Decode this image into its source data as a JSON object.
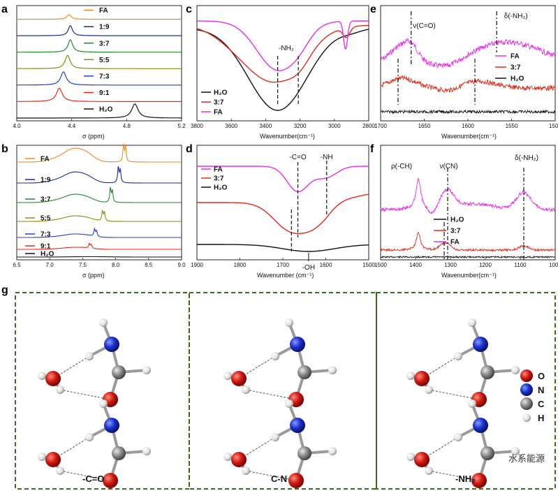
{
  "chart_data": [
    {
      "panel": "a",
      "type": "line",
      "xlabel": "σ (ppm)",
      "xlim": [
        4.0,
        5.2
      ],
      "xticks": [
        "4.0",
        "4.4",
        "4.8",
        "5.2"
      ],
      "series": [
        {
          "name": "FA",
          "color": "#ee8a1e",
          "peak": 4.38,
          "amp": 0.3,
          "width": 0.018
        },
        {
          "name": "1:9",
          "color": "#1b2b8f",
          "peak": 4.39,
          "amp": 0.65,
          "width": 0.018
        },
        {
          "name": "3:7",
          "color": "#22862a",
          "peak": 4.39,
          "amp": 0.8,
          "width": 0.02
        },
        {
          "name": "5:5",
          "color": "#8a8a12",
          "peak": 4.37,
          "amp": 0.85,
          "width": 0.022
        },
        {
          "name": "7:3",
          "color": "#1f3fd6",
          "peak": 4.34,
          "amp": 0.85,
          "width": 0.024
        },
        {
          "name": "9:1",
          "color": "#e02a1a",
          "peak": 4.31,
          "amp": 0.85,
          "width": 0.026
        },
        {
          "name": "H₂O",
          "color": "#111111",
          "peak": 4.86,
          "amp": 0.9,
          "width": 0.028
        }
      ]
    },
    {
      "panel": "b",
      "type": "line",
      "xlabel": "σ (ppm)",
      "xlim": [
        6.5,
        9.0
      ],
      "xticks": [
        "6.5",
        "7.0",
        "7.5",
        "8.0",
        "8.5",
        "9.0"
      ],
      "series": [
        {
          "name": "FA",
          "color": "#ee8a1e"
        },
        {
          "name": "1:9",
          "color": "#1b2b8f"
        },
        {
          "name": "3:7",
          "color": "#22862a"
        },
        {
          "name": "5:5",
          "color": "#8a8a12"
        },
        {
          "name": "7:3",
          "color": "#1f3fd6"
        },
        {
          "name": "9:1",
          "color": "#e02a1a"
        },
        {
          "name": "H₂O",
          "color": "#111111"
        }
      ],
      "peaks_ppm": {
        "FA": 8.12,
        "1:9": 8.04,
        "3:7": 7.92,
        "5:5": 7.8,
        "7:3": 7.68,
        "9:1": 7.6
      }
    },
    {
      "panel": "c",
      "type": "line",
      "xlabel": "Wavenumber(cm⁻¹)",
      "xlim": [
        3800,
        2800
      ],
      "xticks": [
        "3800",
        "3600",
        "3400",
        "3200",
        "3000",
        "2800"
      ],
      "annotations": [
        "-NH₂"
      ],
      "series": [
        {
          "name": "H₂O",
          "color": "#111111"
        },
        {
          "name": "3:7",
          "color": "#e02a1a"
        },
        {
          "name": "FA",
          "color": "#e62ee6"
        }
      ]
    },
    {
      "panel": "d",
      "type": "line",
      "xlabel": "Wavenumber (cm⁻¹)",
      "xlim": [
        1900,
        1500
      ],
      "xticks": [
        "1900",
        "1800",
        "1700",
        "1600",
        "1500"
      ],
      "annotations": [
        "-C=O",
        "-NH",
        "-OH"
      ],
      "series": [
        {
          "name": "FA",
          "color": "#e62ee6"
        },
        {
          "name": "3:7",
          "color": "#e02a1a"
        },
        {
          "name": "H₂O",
          "color": "#111111"
        }
      ]
    },
    {
      "panel": "e",
      "type": "line",
      "xlabel": "Wavenumber(cm⁻¹)",
      "xlim": [
        1700,
        1500
      ],
      "xticks": [
        "1700",
        "1650",
        "1600",
        "1550",
        "1500"
      ],
      "annotations": [
        "ν(C=O)",
        "δ(-NH₂)"
      ],
      "series": [
        {
          "name": "FA",
          "color": "#e62ee6"
        },
        {
          "name": "3:7",
          "color": "#e02a1a"
        },
        {
          "name": "H₂O",
          "color": "#111111"
        }
      ]
    },
    {
      "panel": "f",
      "type": "line",
      "xlabel": "Wavenumber(cm⁻¹)",
      "xlim": [
        1500,
        1000
      ],
      "xticks": [
        "1500",
        "1400",
        "1300",
        "1200",
        "1100",
        "1000"
      ],
      "annotations": [
        "ρ(-CH)",
        "ν(CN)",
        "δ(-NH₂)"
      ],
      "series": [
        {
          "name": "H₂O",
          "color": "#111111"
        },
        {
          "name": "3:7",
          "color": "#e02a1a"
        },
        {
          "name": "FA",
          "color": "#e62ee6"
        }
      ]
    }
  ],
  "labels": {
    "a": "a",
    "b": "b",
    "c": "c",
    "d": "d",
    "e": "e",
    "f": "f",
    "g": "g"
  },
  "molecule_panel": {
    "captions": [
      "-C=O",
      "C-N",
      "-NH₂"
    ],
    "legend": [
      {
        "symbol": "O",
        "color": "#cc1111"
      },
      {
        "symbol": "N",
        "color": "#1a2fcc"
      },
      {
        "symbol": "C",
        "color": "#8a8a8a"
      },
      {
        "symbol": "H",
        "color": "#e8e8e8"
      }
    ]
  },
  "watermark": "水系能源"
}
